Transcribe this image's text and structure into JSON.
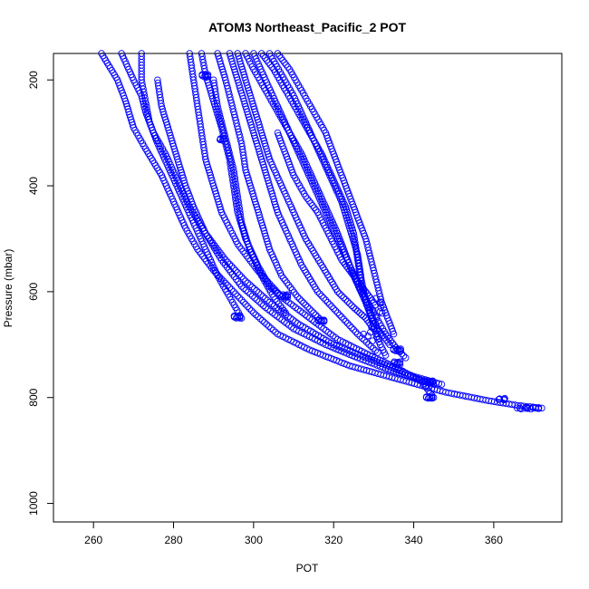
{
  "chart_data": {
    "type": "scatter",
    "title": "ATOM3 Northeast_Pacific_2 POT",
    "xlabel": "POT",
    "ylabel": "Pressure (mbar)",
    "xlim": [
      250,
      377
    ],
    "ylim": [
      1035,
      150
    ],
    "y_reversed": true,
    "grid": false,
    "legend": "none",
    "x_ticks": [
      260,
      280,
      300,
      320,
      340,
      360
    ],
    "y_ticks": [
      200,
      400,
      600,
      800,
      1000
    ],
    "marker": "open-circle",
    "point_color": "#0000ff",
    "series": [
      {
        "x": [
          262,
          266,
          268,
          270,
          273,
          277,
          280,
          283,
          286,
          290,
          295,
          300,
          306,
          314,
          324,
          336,
          348,
          358,
          366,
          372
        ],
        "y": [
          150,
          200,
          240,
          290,
          330,
          380,
          430,
          480,
          520,
          560,
          600,
          640,
          680,
          710,
          740,
          765,
          790,
          805,
          815,
          820
        ]
      },
      {
        "x": [
          267,
          270,
          272,
          273,
          275,
          278,
          281,
          284,
          288,
          293,
          298,
          304,
          311,
          320,
          330,
          340,
          347
        ],
        "y": [
          150,
          200,
          230,
          260,
          300,
          340,
          390,
          440,
          490,
          540,
          580,
          620,
          660,
          700,
          730,
          760,
          775
        ]
      },
      {
        "x": [
          272,
          272,
          273,
          274,
          276,
          279,
          282,
          285,
          288,
          291,
          294,
          297
        ],
        "y": [
          150,
          200,
          240,
          280,
          320,
          370,
          420,
          470,
          520,
          570,
          610,
          650
        ]
      },
      {
        "x": [
          276,
          277,
          279,
          281,
          283,
          285,
          288,
          292,
          297,
          303,
          310,
          318,
          326,
          333,
          339,
          345
        ],
        "y": [
          200,
          250,
          300,
          350,
          400,
          440,
          490,
          540,
          590,
          630,
          670,
          700,
          725,
          745,
          760,
          775
        ]
      },
      {
        "x": [
          284,
          285,
          286,
          287,
          288,
          290,
          292,
          296,
          301,
          307,
          314,
          321,
          329,
          336,
          342,
          345
        ],
        "y": [
          150,
          200,
          250,
          300,
          350,
          400,
          450,
          510,
          560,
          610,
          650,
          690,
          720,
          745,
          770,
          800
        ]
      },
      {
        "x": [
          287,
          288,
          290,
          292,
          294,
          295,
          296,
          298,
          301,
          304,
          307
        ],
        "y": [
          150,
          190,
          240,
          290,
          350,
          400,
          450,
          500,
          550,
          590,
          610
        ]
      },
      {
        "x": [
          290,
          291,
          293,
          295,
          296,
          297,
          299,
          302,
          305,
          308
        ],
        "y": [
          200,
          250,
          310,
          370,
          420,
          470,
          520,
          570,
          610,
          640
        ]
      },
      {
        "x": [
          291,
          293,
          295,
          297,
          298,
          300,
          302,
          304,
          307,
          311,
          315,
          317
        ],
        "y": [
          150,
          200,
          260,
          320,
          370,
          420,
          470,
          520,
          570,
          610,
          640,
          655
        ]
      },
      {
        "x": [
          294,
          296,
          298,
          300,
          302,
          304,
          306,
          309,
          312,
          316,
          321,
          326,
          331
        ],
        "y": [
          150,
          200,
          250,
          300,
          350,
          400,
          450,
          500,
          550,
          600,
          640,
          680,
          715
        ]
      },
      {
        "x": [
          296,
          298,
          300,
          302,
          304,
          307,
          310,
          313,
          317,
          321,
          325,
          328,
          330
        ],
        "y": [
          150,
          200,
          250,
          300,
          350,
          400,
          450,
          500,
          550,
          600,
          630,
          650,
          670
        ]
      },
      {
        "x": [
          298,
          300,
          303,
          306,
          309,
          312,
          315,
          318,
          321,
          324,
          327,
          330,
          333,
          336,
          338
        ],
        "y": [
          150,
          180,
          220,
          260,
          300,
          350,
          400,
          450,
          500,
          550,
          600,
          640,
          680,
          710,
          725
        ]
      },
      {
        "x": [
          300,
          303,
          306,
          309,
          312,
          315,
          318,
          321,
          323,
          325,
          328,
          331,
          334
        ],
        "y": [
          150,
          200,
          250,
          300,
          340,
          390,
          440,
          490,
          530,
          570,
          620,
          670,
          700
        ]
      },
      {
        "x": [
          302,
          305,
          308,
          311,
          314,
          317,
          320,
          323,
          325,
          326,
          327,
          329,
          331,
          333
        ],
        "y": [
          150,
          180,
          220,
          260,
          300,
          340,
          390,
          440,
          490,
          540,
          590,
          640,
          690,
          720
        ]
      },
      {
        "x": [
          304,
          307,
          310,
          313,
          316,
          319,
          322,
          324,
          326,
          327,
          328,
          330
        ],
        "y": [
          150,
          190,
          230,
          280,
          330,
          380,
          430,
          480,
          530,
          580,
          620,
          660
        ]
      },
      {
        "x": [
          306,
          309,
          312,
          315,
          318,
          320,
          322,
          324,
          326,
          328,
          330,
          332,
          335
        ],
        "y": [
          150,
          180,
          220,
          260,
          300,
          340,
          380,
          420,
          460,
          500,
          560,
          620,
          680
        ]
      },
      {
        "x": [
          306,
          308,
          310,
          313,
          316,
          318,
          320,
          322,
          324,
          326,
          328,
          330
        ],
        "y": [
          300,
          340,
          380,
          420,
          450,
          480,
          510,
          540,
          560,
          580,
          600,
          620
        ]
      }
    ],
    "clusters": [
      {
        "x": 288,
        "y": 192,
        "n": 8,
        "spread_x": 1.2,
        "spread_y": 3
      },
      {
        "x": 292,
        "y": 312,
        "n": 6,
        "spread_x": 0.8,
        "spread_y": 3
      },
      {
        "x": 296,
        "y": 648,
        "n": 8,
        "spread_x": 1.2,
        "spread_y": 3
      },
      {
        "x": 308,
        "y": 608,
        "n": 8,
        "spread_x": 1.0,
        "spread_y": 4
      },
      {
        "x": 317,
        "y": 655,
        "n": 8,
        "spread_x": 1.2,
        "spread_y": 2
      },
      {
        "x": 336,
        "y": 710,
        "n": 8,
        "spread_x": 1.5,
        "spread_y": 3
      },
      {
        "x": 336,
        "y": 735,
        "n": 8,
        "spread_x": 1.2,
        "spread_y": 4
      },
      {
        "x": 344,
        "y": 770,
        "n": 8,
        "spread_x": 1.5,
        "spread_y": 2
      },
      {
        "x": 344,
        "y": 800,
        "n": 8,
        "spread_x": 1.2,
        "spread_y": 2
      },
      {
        "x": 369,
        "y": 820,
        "n": 14,
        "spread_x": 3.5,
        "spread_y": 2
      },
      {
        "x": 362,
        "y": 803,
        "n": 6,
        "spread_x": 1.5,
        "spread_y": 2
      },
      {
        "x": 331,
        "y": 630,
        "n": 10,
        "spread_x": 2.0,
        "spread_y": 20
      },
      {
        "x": 330,
        "y": 680,
        "n": 10,
        "spread_x": 2.5,
        "spread_y": 15
      }
    ]
  }
}
